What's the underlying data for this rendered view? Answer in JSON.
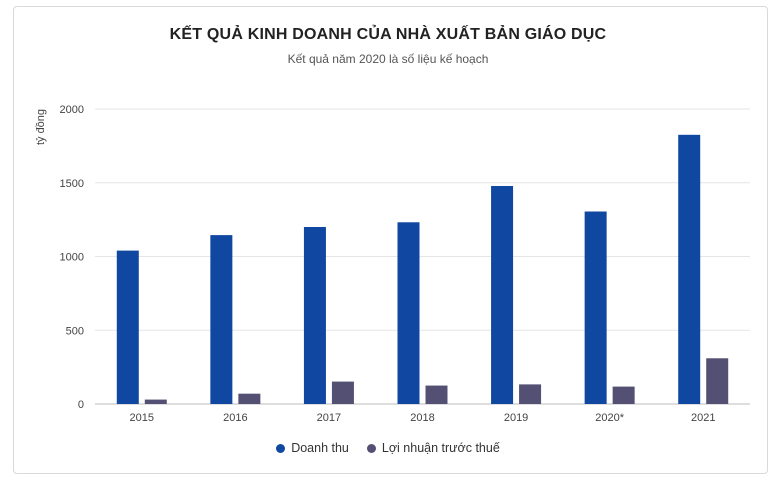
{
  "chart_data": {
    "type": "bar",
    "title": "KẾT QUẢ KINH DOANH CỦA NHÀ XUẤT BẢN GIÁO DỤC",
    "subtitle": "Kết quả năm 2020 là số liệu kế hoạch",
    "ylabel": "tỷ đồng",
    "xlabel": "",
    "categories": [
      "2015",
      "2016",
      "2017",
      "2018",
      "2019",
      "2020*",
      "2021"
    ],
    "ylim": [
      0,
      2000
    ],
    "yticks": [
      0,
      500,
      1000,
      1500,
      2000
    ],
    "grid": true,
    "legend_position": "bottom",
    "series": [
      {
        "name": "Doanh thu",
        "color": "#0f47a1",
        "values": [
          1040,
          1145,
          1200,
          1232,
          1478,
          1305,
          1825
        ]
      },
      {
        "name": "Lợi nhuận trước thuế",
        "color": "#545073",
        "values": [
          30,
          70,
          152,
          125,
          133,
          118,
          310
        ]
      }
    ]
  }
}
